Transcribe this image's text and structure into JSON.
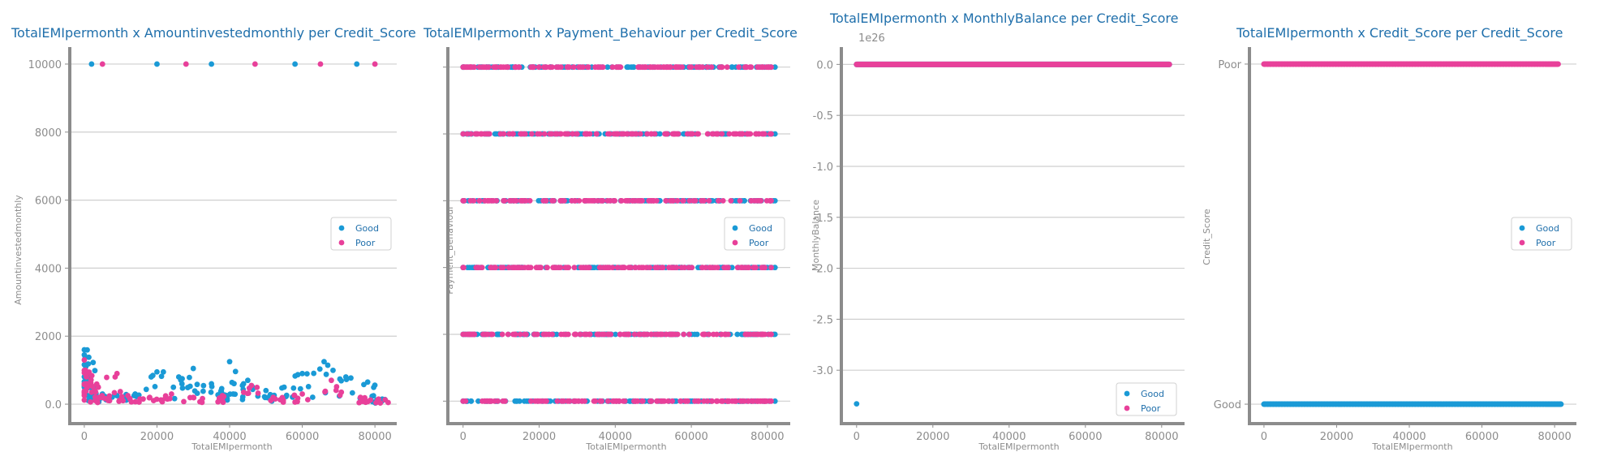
{
  "colors": {
    "good": "#1a9ad6",
    "poor": "#e8409a",
    "axis": "#8c8c8c",
    "grid": "#cfcfcf",
    "title": "#1f6fab"
  },
  "chart_data": [
    {
      "type": "scatter",
      "title": "TotalEMIpermonth x Amountinvestedmonthly per Credit_Score",
      "xlabel": "TotalEMIpermonth",
      "ylabel": "Amountinvestedmonthly",
      "xlim": [
        -4000,
        86000
      ],
      "ylim": [
        -500,
        10500
      ],
      "xticks": [
        0,
        20000,
        40000,
        60000,
        80000
      ],
      "yticks": [
        0,
        2000,
        4000,
        6000,
        8000,
        10000
      ],
      "legend": "center-right",
      "series": [
        {
          "name": "Good",
          "x": [
            0,
            200,
            400,
            800,
            1500,
            3000,
            5000,
            9000,
            14000,
            20000,
            26000,
            30000,
            35000,
            40000,
            41000,
            45000,
            50000,
            55000,
            60000,
            66000,
            72000,
            78000,
            82000,
            2000,
            20000,
            35000,
            58000,
            75000
          ],
          "y": [
            1600,
            1400,
            1100,
            900,
            500,
            350,
            300,
            250,
            300,
            950,
            800,
            1050,
            600,
            1250,
            300,
            700,
            400,
            500,
            900,
            1250,
            800,
            650,
            150,
            10000,
            10000,
            10000,
            10000,
            10000
          ]
        },
        {
          "name": "Poor",
          "x": [
            0,
            300,
            600,
            1000,
            2000,
            4000,
            9000,
            12000,
            18000,
            24000,
            30000,
            38000,
            46000,
            52000,
            60000,
            68000,
            76000,
            81000,
            5000,
            28000,
            47000,
            65000,
            80000
          ],
          "y": [
            1300,
            1000,
            800,
            600,
            350,
            200,
            900,
            250,
            200,
            300,
            200,
            250,
            550,
            200,
            300,
            700,
            200,
            150,
            10000,
            10000,
            10000,
            10000,
            10000
          ]
        }
      ]
    },
    {
      "type": "scatter",
      "title": "TotalEMIpermonth x Payment_Behaviour per Credit_Score",
      "xlabel": "TotalEMIpermonth",
      "ylabel": "Payment_Behaviour",
      "xlim": [
        -4000,
        86000
      ],
      "ylim": [
        -0.3,
        5.3
      ],
      "xticks": [
        0,
        20000,
        40000,
        60000,
        80000
      ],
      "yticks": [],
      "category_rows": [
        0,
        1,
        2,
        3,
        4,
        5
      ],
      "legend": "center-right",
      "series": [
        {
          "name": "Good",
          "rows": [
            0,
            1,
            2,
            3,
            4,
            5
          ],
          "xmax": 82000
        },
        {
          "name": "Poor",
          "rows": [
            0,
            1,
            2,
            3,
            4,
            5
          ],
          "xmax": 81000
        }
      ]
    },
    {
      "type": "scatter",
      "title": "TotalEMIpermonth x MonthlyBalance per Credit_Score",
      "xlabel": "TotalEMIpermonth",
      "ylabel": "MonthlyBalance",
      "offset_text": "1e26",
      "xlim": [
        -4000,
        86000
      ],
      "ylim": [
        -3.5,
        0.17
      ],
      "xticks": [
        0,
        20000,
        40000,
        60000,
        80000
      ],
      "yticks": [
        0.0,
        -0.5,
        -1.0,
        -1.5,
        -2.0,
        -2.5,
        -3.0
      ],
      "legend": "lower-right",
      "series": [
        {
          "name": "Good",
          "x": [
            0,
            82000
          ],
          "y": [
            0,
            0
          ],
          "outlier": {
            "x": 0,
            "y": -3.33
          }
        },
        {
          "name": "Poor",
          "x": [
            0,
            82000
          ],
          "y": [
            0,
            0
          ]
        }
      ]
    },
    {
      "type": "scatter",
      "title": "TotalEMIpermonth x Credit_Score per Credit_Score",
      "xlabel": "TotalEMIpermonth",
      "ylabel": "Credit_Score",
      "xlim": [
        -4000,
        86000
      ],
      "ylim": [
        -0.05,
        1.05
      ],
      "xticks": [
        0,
        20000,
        40000,
        60000,
        80000
      ],
      "ytick_labels": [
        "Good",
        "Poor"
      ],
      "legend": "center-right",
      "series": [
        {
          "name": "Good",
          "row": 0,
          "xmax": 82000
        },
        {
          "name": "Poor",
          "row": 1,
          "xmax": 81000
        }
      ]
    }
  ]
}
